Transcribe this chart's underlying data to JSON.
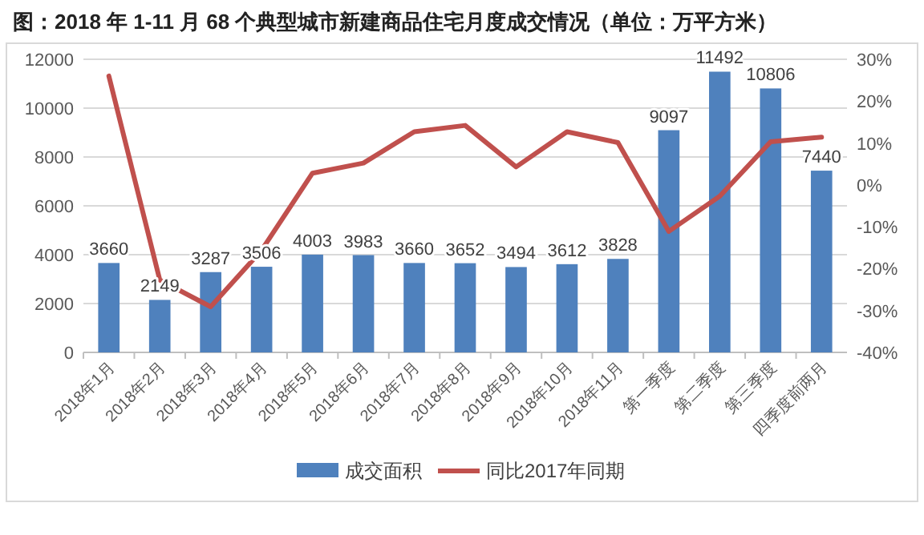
{
  "chart_data": {
    "type": "bar",
    "title": "图：2018 年 1-11 月 68 个典型城市新建商品住宅月度成交情况（单位：万平方米）",
    "categories": [
      "2018年1月",
      "2018年2月",
      "2018年3月",
      "2018年4月",
      "2018年5月",
      "2018年6月",
      "2018年7月",
      "2018年8月",
      "2018年9月",
      "2018年10月",
      "2018年11月",
      "第一季度",
      "第二季度",
      "第三季度",
      "四季度前两月"
    ],
    "series": [
      {
        "name": "成交面积",
        "color": "#4f81bd",
        "values": [
          3660,
          2149,
          3287,
          3506,
          4003,
          3983,
          3660,
          3652,
          3494,
          3612,
          3828,
          9097,
          11492,
          10806,
          7440
        ],
        "value_labels": [
          "3660",
          "2149",
          "3287",
          "3506",
          "4003",
          "3983",
          "3660",
          "3652",
          "3494",
          "3612",
          "3828",
          "9097",
          "11492",
          "10806",
          "7440"
        ]
      },
      {
        "name": "同比2017年同期",
        "type": "line",
        "axis": "y2",
        "color": "#c0504d",
        "values": [
          26,
          -22.7,
          -29.1,
          -15.6,
          2.8,
          5.2,
          12.7,
          14.2,
          4.3,
          12.7,
          10.1,
          -11.1,
          -2.7,
          10.3,
          11.4
        ]
      }
    ],
    "ylim": [
      0,
      12000
    ],
    "yticks": [
      0,
      2000,
      4000,
      6000,
      8000,
      10000,
      12000
    ],
    "y2lim": [
      -40,
      30
    ],
    "y2ticks": [
      {
        "value": -40,
        "label": "-40%"
      },
      {
        "value": -30,
        "label": "-30%"
      },
      {
        "value": -20,
        "label": "-20%"
      },
      {
        "value": -10,
        "label": "-10%"
      },
      {
        "value": 0,
        "label": "0%"
      },
      {
        "value": 10,
        "label": "10%"
      },
      {
        "value": 20,
        "label": "20%"
      },
      {
        "value": 30,
        "label": "30%"
      }
    ],
    "grid": "y",
    "legend": "bottom",
    "marker": "none",
    "line_style": "solid"
  }
}
